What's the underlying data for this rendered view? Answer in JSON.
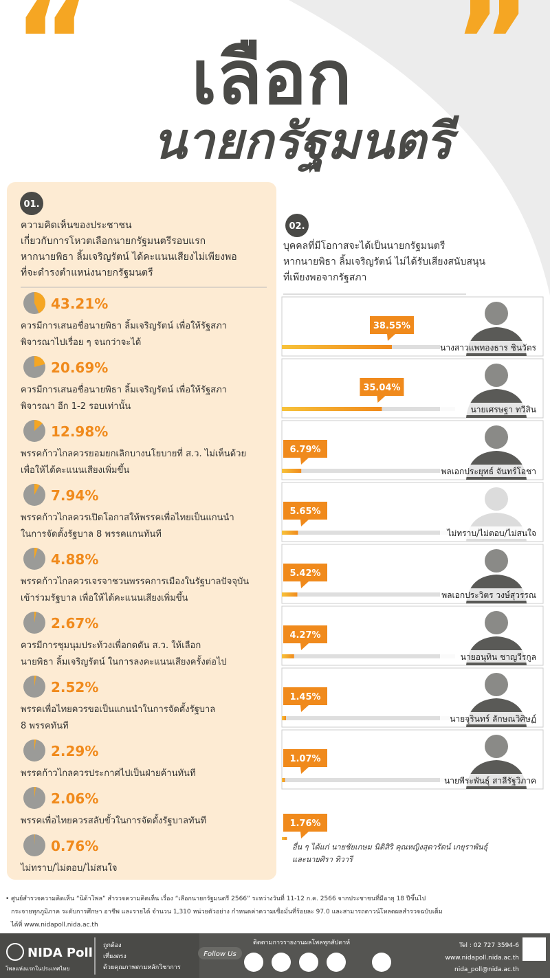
{
  "header": {
    "title_line1": "เลือก",
    "title_line2": "นายกรัฐมนตรี"
  },
  "section1": {
    "number": "01.",
    "heading": [
      "ความคิดเห็นของประชาชน",
      "เกี่ยวกับการโหวตเลือกนายกรัฐมนตรีรอบแรก",
      "หากนายพิธา ลิ้มเจริญรัตน์ ได้คะแนนเสียงไม่เพียงพอ",
      "ที่จะดำรงตำแหน่งนายกรัฐมนตรี"
    ],
    "items": [
      {
        "value": 43.21,
        "label": "43.21%",
        "text": [
          "ควรมีการเสนอชื่อนายพิธา ลิ้มเจริญรัตน์ เพื่อให้รัฐสภา",
          "พิจารณาไปเรื่อย ๆ จนกว่าจะได้"
        ]
      },
      {
        "value": 20.69,
        "label": "20.69%",
        "text": [
          "ควรมีการเสนอชื่อนายพิธา ลิ้มเจริญรัตน์ เพื่อให้รัฐสภา",
          "พิจารณา อีก 1-2 รอบเท่านั้น"
        ]
      },
      {
        "value": 12.98,
        "label": "12.98%",
        "text": [
          "พรรคก้าวไกลควรยอมยกเลิกบางนโยบายที่ ส.ว. ไม่เห็นด้วย",
          "เพื่อให้ได้คะแนนเสียงเพิ่มขึ้น"
        ]
      },
      {
        "value": 7.94,
        "label": "7.94%",
        "text": [
          "พรรคก้าวไกลควรเปิดโอกาสให้พรรคเพื่อไทยเป็นแกนนำ",
          "ในการจัดตั้งรัฐบาล 8 พรรคแกนทันที"
        ]
      },
      {
        "value": 4.88,
        "label": "4.88%",
        "text": [
          "พรรคก้าวไกลควรเจรจาชวนพรรคการเมืองในรัฐบาลปัจจุบัน",
          "เข้าร่วมรัฐบาล เพื่อให้ได้คะแนนเสียงเพิ่มขึ้น"
        ]
      },
      {
        "value": 2.67,
        "label": "2.67%",
        "text": [
          "ควรมีการชุมนุมประท้วงเพื่อกดดัน ส.ว. ให้เลือก",
          "นายพิธา ลิ้มเจริญรัตน์ ในการลงคะแนนเสียงครั้งต่อไป"
        ]
      },
      {
        "value": 2.52,
        "label": "2.52%",
        "text": [
          "พรรคเพื่อไทยควรขอเป็นแกนนำในการจัดตั้งรัฐบาล",
          "8 พรรคทันที"
        ]
      },
      {
        "value": 2.29,
        "label": "2.29%",
        "text": [
          "พรรคก้าวไกลควรประกาศไปเป็นฝ่ายค้านทันที"
        ]
      },
      {
        "value": 2.06,
        "label": "2.06%",
        "text": [
          "พรรคเพื่อไทยควรสลับขั้วในการจัดตั้งรัฐบาลทันที"
        ]
      },
      {
        "value": 0.76,
        "label": "0.76%",
        "text": [
          "ไม่ทราบ/ไม่ตอบ/ไม่สนใจ"
        ]
      }
    ]
  },
  "section2": {
    "number": "02.",
    "heading": [
      "บุคคลที่มีโอกาสจะได้เป็นนายกรัฐมนตรี",
      "หากนายพิธา ลิ้มเจริญรัตน์ ไม่ได้รับเสียงสนับสนุน",
      "ที่เพียงพอจากรัฐสภา"
    ],
    "items": [
      {
        "value": 38.55,
        "label": "38.55%",
        "name": "นางสาวแพทองธาร ชินวัตร"
      },
      {
        "value": 35.04,
        "label": "35.04%",
        "name": "นายเศรษฐา ทวีสิน"
      },
      {
        "value": 6.79,
        "label": "6.79%",
        "name": "พลเอกประยุทธ์ จันทร์โอชา"
      },
      {
        "value": 5.65,
        "label": "5.65%",
        "name": "ไม่ทราบ/ไม่ตอบ/ไม่สนใจ"
      },
      {
        "value": 5.42,
        "label": "5.42%",
        "name": "พลเอกประวิตร วงษ์สุวรรณ"
      },
      {
        "value": 4.27,
        "label": "4.27%",
        "name": "นายอนุทิน ชาญวีรกูล"
      },
      {
        "value": 1.45,
        "label": "1.45%",
        "name": "นายจุรินทร์ ลักษณวิศิษฏ์"
      },
      {
        "value": 1.07,
        "label": "1.07%",
        "name": "นายพีระพันธุ์ สาลีรัฐวิภาค"
      }
    ],
    "other": {
      "value": 1.76,
      "label": "1.76%",
      "note": [
        "อื่น ๆ ได้แก่ นายชัยเกษม นิติสิริ คุณหญิงสุดารัตน์ เกยุราพันธุ์",
        "และนายศิรา ทิวารี"
      ]
    }
  },
  "footnote": [
    "• ศูนย์สำรวจความคิดเห็น “นิด้าโพล” สำรวจความคิดเห็น เรื่อง “เลือกนายกรัฐมนตรี 2566” ระหว่างวันที่ 11-12 ก.ค. 2566 จากประชาชนที่มีอายุ 18 ปีขึ้นไป",
    "กระจายทุกภูมิภาค ระดับการศึกษา อาชีพ และรายได้ จำนวน 1,310 หน่วยตัวอย่าง กำหนดค่าความเชื่อมั่นที่ร้อยละ 97.0 และสามารถดาวน์โหลดผลสำรวจฉบับเต็ม",
    "ได้ที่ www.nidapoll.nida.ac.th"
  ],
  "footer": {
    "brand": "NIDA Poll",
    "slogan": "โพลแห่งแรกในประเทศไทย",
    "taglines": [
      "ถูกต้อง",
      "เที่ยงตรง",
      "ด้วยคุณภาพตามหลักวิชาการ"
    ],
    "follow_note": "ติดตามการรายงานผลโพลทุกสัปดาห์",
    "follow": "Follow Us",
    "tel": "Tel : 02 727 3594-6",
    "web": "www.nidapoll.nida.ac.th",
    "email": "nida_poll@nida.ac.th"
  }
}
